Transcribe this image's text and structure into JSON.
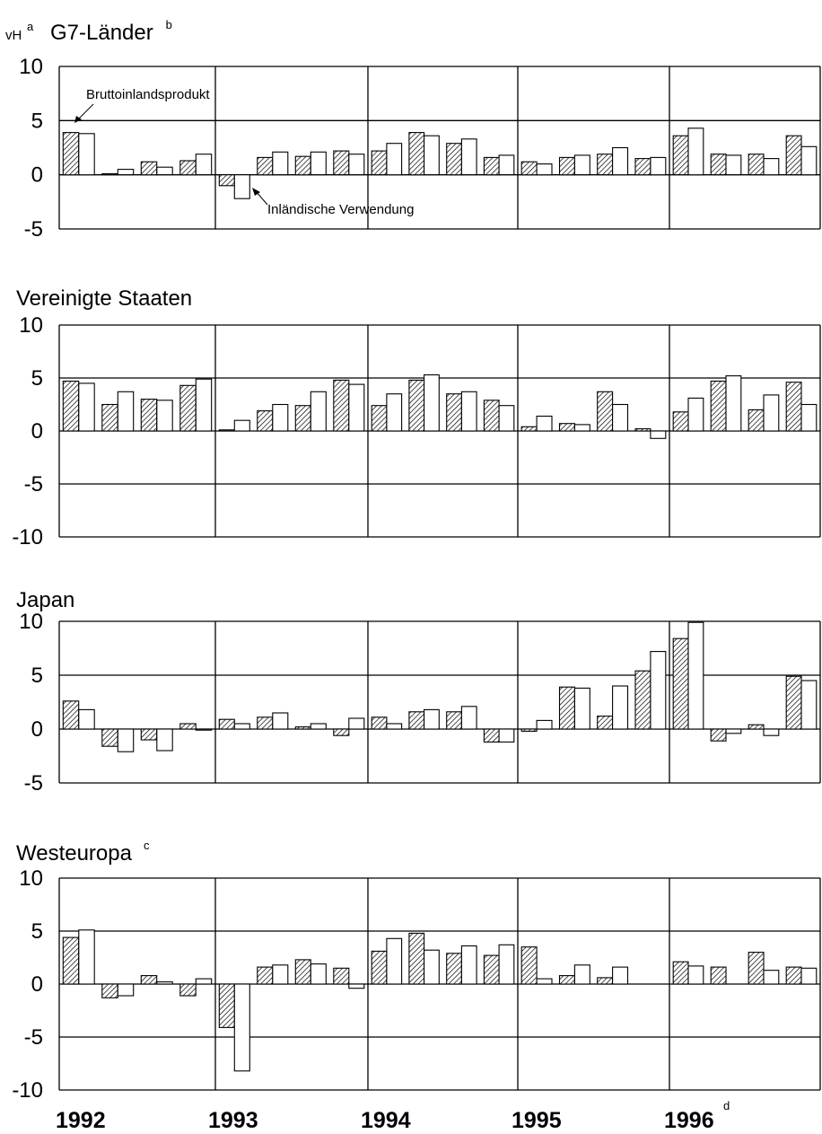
{
  "unit_label": "vH",
  "unit_sup": "a",
  "x_labels": [
    "1992",
    "1993",
    "1994",
    "1995",
    "1996"
  ],
  "x_last_sup": "d",
  "annotations": {
    "gdp": "Bruttoinlandsprodukt",
    "domestic": "Inländische Verwendung"
  },
  "colors": {
    "hatch": "#000000",
    "bar_fill": "#ffffff",
    "background": "#ffffff"
  },
  "chart_data": [
    {
      "type": "bar",
      "title": "G7-Länder",
      "title_sup": "b",
      "ylim": [
        -5,
        10
      ],
      "yticks": [
        "10",
        "5",
        "0",
        "-5"
      ],
      "categories": [
        "1992 Q1",
        "1992 Q2",
        "1992 Q3",
        "1992 Q4",
        "1993 Q1",
        "1993 Q2",
        "1993 Q3",
        "1993 Q4",
        "1994 Q1",
        "1994 Q2",
        "1994 Q3",
        "1994 Q4",
        "1995 Q1",
        "1995 Q2",
        "1995 Q3",
        "1995 Q4",
        "1996 Q1",
        "1996 Q2",
        "1996 Q3",
        "1996 Q4"
      ],
      "series": [
        {
          "name": "Bruttoinlandsprodukt",
          "values": [
            3.9,
            0.1,
            1.2,
            1.3,
            -1.0,
            1.6,
            1.7,
            2.2,
            2.2,
            3.9,
            2.9,
            1.6,
            1.2,
            1.6,
            1.9,
            1.5,
            3.6,
            1.9,
            1.9,
            3.6
          ]
        },
        {
          "name": "Inländische Verwendung",
          "values": [
            3.8,
            0.5,
            0.7,
            1.9,
            -2.2,
            2.1,
            2.1,
            1.9,
            2.9,
            3.6,
            3.3,
            1.8,
            1.0,
            1.8,
            2.5,
            1.6,
            4.3,
            1.8,
            1.5,
            2.6
          ]
        }
      ]
    },
    {
      "type": "bar",
      "title": "Vereinigte Staaten",
      "title_sup": "",
      "ylim": [
        -10,
        10
      ],
      "yticks": [
        "10",
        "5",
        "0",
        "-5",
        "-10"
      ],
      "categories": [
        "1992 Q1",
        "1992 Q2",
        "1992 Q3",
        "1992 Q4",
        "1993 Q1",
        "1993 Q2",
        "1993 Q3",
        "1993 Q4",
        "1994 Q1",
        "1994 Q2",
        "1994 Q3",
        "1994 Q4",
        "1995 Q1",
        "1995 Q2",
        "1995 Q3",
        "1995 Q4",
        "1996 Q1",
        "1996 Q2",
        "1996 Q3",
        "1996 Q4"
      ],
      "series": [
        {
          "name": "Bruttoinlandsprodukt",
          "values": [
            4.7,
            2.5,
            3.0,
            4.3,
            0.1,
            1.9,
            2.4,
            4.8,
            2.4,
            4.8,
            3.5,
            2.9,
            0.4,
            0.7,
            3.7,
            0.2,
            1.8,
            4.7,
            2.0,
            4.6
          ]
        },
        {
          "name": "Inländische Verwendung",
          "values": [
            4.5,
            3.7,
            2.9,
            4.9,
            1.0,
            2.5,
            3.7,
            4.4,
            3.5,
            5.3,
            3.7,
            2.4,
            1.4,
            0.6,
            2.5,
            -0.7,
            3.1,
            5.2,
            3.4,
            2.5
          ]
        }
      ]
    },
    {
      "type": "bar",
      "title": "Japan",
      "title_sup": "",
      "ylim": [
        -5,
        10
      ],
      "yticks": [
        "10",
        "5",
        "0",
        "-5"
      ],
      "categories": [
        "1992 Q1",
        "1992 Q2",
        "1992 Q3",
        "1992 Q4",
        "1993 Q1",
        "1993 Q2",
        "1993 Q3",
        "1993 Q4",
        "1994 Q1",
        "1994 Q2",
        "1994 Q3",
        "1994 Q4",
        "1995 Q1",
        "1995 Q2",
        "1995 Q3",
        "1995 Q4",
        "1996 Q1",
        "1996 Q2",
        "1996 Q3",
        "1996 Q4"
      ],
      "series": [
        {
          "name": "Bruttoinlandsprodukt",
          "values": [
            2.6,
            -1.6,
            -1.0,
            0.5,
            0.9,
            1.1,
            0.2,
            -0.6,
            1.1,
            1.6,
            1.6,
            -1.2,
            -0.2,
            3.9,
            1.2,
            5.4,
            8.4,
            -1.1,
            0.4,
            4.9
          ]
        },
        {
          "name": "Inländische Verwendung",
          "values": [
            1.8,
            -2.1,
            -2.0,
            -0.1,
            0.5,
            1.5,
            0.5,
            1.0,
            0.5,
            1.8,
            2.1,
            -1.2,
            0.8,
            3.8,
            4.0,
            7.2,
            9.9,
            -0.4,
            -0.6,
            4.5
          ]
        }
      ]
    },
    {
      "type": "bar",
      "title": "Westeuropa",
      "title_sup": "c",
      "ylim": [
        -10,
        10
      ],
      "yticks": [
        "10",
        "5",
        "0",
        "-5",
        "-10"
      ],
      "categories": [
        "1992 Q1",
        "1992 Q2",
        "1992 Q3",
        "1992 Q4",
        "1993 Q1",
        "1993 Q2",
        "1993 Q3",
        "1993 Q4",
        "1994 Q1",
        "1994 Q2",
        "1994 Q3",
        "1994 Q4",
        "1995 Q1",
        "1995 Q2",
        "1995 Q3",
        "1995 Q4",
        "1996 Q1",
        "1996 Q2",
        "1996 Q3",
        "1996 Q4"
      ],
      "series": [
        {
          "name": "Bruttoinlandsprodukt",
          "values": [
            4.4,
            -1.3,
            0.8,
            -1.1,
            -4.1,
            1.6,
            2.3,
            1.5,
            3.1,
            4.8,
            2.9,
            2.7,
            3.5,
            0.8,
            0.6,
            0.0,
            2.1,
            1.6,
            3.0,
            1.6
          ]
        },
        {
          "name": "Inländische Verwendung",
          "values": [
            5.1,
            -1.1,
            0.2,
            0.5,
            -8.2,
            1.8,
            1.9,
            -0.4,
            4.3,
            3.2,
            3.6,
            3.7,
            0.5,
            1.8,
            1.6,
            0.0,
            1.7,
            0.0,
            1.3,
            1.5
          ]
        }
      ]
    }
  ]
}
